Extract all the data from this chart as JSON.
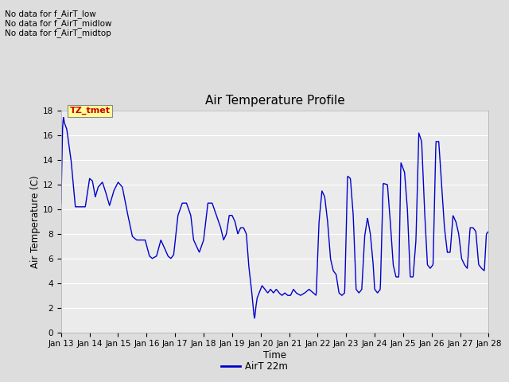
{
  "title": "Air Temperature Profile",
  "xlabel": "Time",
  "ylabel": "Air Temperature (C)",
  "ylim": [
    0,
    18
  ],
  "yticks": [
    0,
    2,
    4,
    6,
    8,
    10,
    12,
    14,
    16,
    18
  ],
  "x_tick_labels": [
    "Jan 13",
    "Jan 14",
    "Jan 15",
    "Jan 16",
    "Jan 17",
    "Jan 18",
    "Jan 19",
    "Jan 20",
    "Jan 21",
    "Jan 22",
    "Jan 23",
    "Jan 24",
    "Jan 25",
    "Jan 26",
    "Jan 27",
    "Jan 28"
  ],
  "line_color": "#0000cc",
  "line_width": 1.0,
  "fig_bg_color": "#dddddd",
  "plot_bg_color": "#ebebeb",
  "legend_label": "AirT 22m",
  "annotations": [
    "No data for f_AirT_low",
    "No data for f_AirT_midlow",
    "No data for f_AirT_midtop"
  ],
  "annotation_box_text": "TZ_tmet",
  "annotation_box_color": "#cc0000",
  "annotation_box_bg": "#ffff99",
  "control_points": [
    [
      0.0,
      10.5
    ],
    [
      0.05,
      16.5
    ],
    [
      0.08,
      17.5
    ],
    [
      0.12,
      17.0
    ],
    [
      0.2,
      16.5
    ],
    [
      0.35,
      14.0
    ],
    [
      0.5,
      10.2
    ],
    [
      0.7,
      10.2
    ],
    [
      0.85,
      10.2
    ],
    [
      1.0,
      12.5
    ],
    [
      1.1,
      12.3
    ],
    [
      1.2,
      11.0
    ],
    [
      1.3,
      11.8
    ],
    [
      1.45,
      12.2
    ],
    [
      1.55,
      11.5
    ],
    [
      1.7,
      10.3
    ],
    [
      1.85,
      11.5
    ],
    [
      2.0,
      12.2
    ],
    [
      2.15,
      11.8
    ],
    [
      2.3,
      10.0
    ],
    [
      2.5,
      7.8
    ],
    [
      2.65,
      7.5
    ],
    [
      2.8,
      7.5
    ],
    [
      2.95,
      7.5
    ],
    [
      3.1,
      6.2
    ],
    [
      3.2,
      6.0
    ],
    [
      3.35,
      6.2
    ],
    [
      3.5,
      7.5
    ],
    [
      3.6,
      7.0
    ],
    [
      3.75,
      6.2
    ],
    [
      3.85,
      6.0
    ],
    [
      3.95,
      6.3
    ],
    [
      4.1,
      9.5
    ],
    [
      4.25,
      10.5
    ],
    [
      4.4,
      10.5
    ],
    [
      4.55,
      9.5
    ],
    [
      4.65,
      7.5
    ],
    [
      4.75,
      7.0
    ],
    [
      4.85,
      6.5
    ],
    [
      5.0,
      7.5
    ],
    [
      5.15,
      10.5
    ],
    [
      5.3,
      10.5
    ],
    [
      5.45,
      9.5
    ],
    [
      5.6,
      8.5
    ],
    [
      5.7,
      7.5
    ],
    [
      5.8,
      8.0
    ],
    [
      5.9,
      9.5
    ],
    [
      6.0,
      9.5
    ],
    [
      6.1,
      9.0
    ],
    [
      6.2,
      8.0
    ],
    [
      6.3,
      8.5
    ],
    [
      6.4,
      8.5
    ],
    [
      6.5,
      8.0
    ],
    [
      6.58,
      5.5
    ],
    [
      6.63,
      4.5
    ],
    [
      6.68,
      3.5
    ],
    [
      6.72,
      2.5
    ],
    [
      6.76,
      1.5
    ],
    [
      6.79,
      1.1
    ],
    [
      6.83,
      2.0
    ],
    [
      6.88,
      2.8
    ],
    [
      6.95,
      3.2
    ],
    [
      7.05,
      3.8
    ],
    [
      7.15,
      3.5
    ],
    [
      7.25,
      3.2
    ],
    [
      7.35,
      3.5
    ],
    [
      7.45,
      3.2
    ],
    [
      7.55,
      3.5
    ],
    [
      7.65,
      3.2
    ],
    [
      7.75,
      3.0
    ],
    [
      7.85,
      3.2
    ],
    [
      7.95,
      3.0
    ],
    [
      8.05,
      3.0
    ],
    [
      8.15,
      3.5
    ],
    [
      8.25,
      3.2
    ],
    [
      8.4,
      3.0
    ],
    [
      8.55,
      3.2
    ],
    [
      8.7,
      3.5
    ],
    [
      8.85,
      3.2
    ],
    [
      8.95,
      3.0
    ],
    [
      9.05,
      9.0
    ],
    [
      9.15,
      11.5
    ],
    [
      9.25,
      11.0
    ],
    [
      9.35,
      9.0
    ],
    [
      9.45,
      6.0
    ],
    [
      9.55,
      5.0
    ],
    [
      9.65,
      4.7
    ],
    [
      9.75,
      3.2
    ],
    [
      9.85,
      3.0
    ],
    [
      9.95,
      3.2
    ],
    [
      10.05,
      12.7
    ],
    [
      10.15,
      12.5
    ],
    [
      10.25,
      9.5
    ],
    [
      10.35,
      3.5
    ],
    [
      10.45,
      3.2
    ],
    [
      10.55,
      3.5
    ],
    [
      10.65,
      7.8
    ],
    [
      10.75,
      9.3
    ],
    [
      10.85,
      8.0
    ],
    [
      10.95,
      5.5
    ],
    [
      11.0,
      3.5
    ],
    [
      11.1,
      3.2
    ],
    [
      11.2,
      3.5
    ],
    [
      11.3,
      12.1
    ],
    [
      11.45,
      12.0
    ],
    [
      11.55,
      9.0
    ],
    [
      11.65,
      5.5
    ],
    [
      11.75,
      4.5
    ],
    [
      11.85,
      4.5
    ],
    [
      11.92,
      13.8
    ],
    [
      12.05,
      13.0
    ],
    [
      12.15,
      10.0
    ],
    [
      12.25,
      4.5
    ],
    [
      12.35,
      4.5
    ],
    [
      12.45,
      7.5
    ],
    [
      12.55,
      16.2
    ],
    [
      12.65,
      15.5
    ],
    [
      12.75,
      10.0
    ],
    [
      12.85,
      5.5
    ],
    [
      12.95,
      5.2
    ],
    [
      13.05,
      5.5
    ],
    [
      13.15,
      15.5
    ],
    [
      13.25,
      15.5
    ],
    [
      13.35,
      12.0
    ],
    [
      13.45,
      8.5
    ],
    [
      13.55,
      6.5
    ],
    [
      13.65,
      6.5
    ],
    [
      13.75,
      9.5
    ],
    [
      13.85,
      9.0
    ],
    [
      13.95,
      8.0
    ],
    [
      14.05,
      6.0
    ],
    [
      14.15,
      5.5
    ],
    [
      14.25,
      5.2
    ],
    [
      14.35,
      8.5
    ],
    [
      14.45,
      8.5
    ],
    [
      14.55,
      8.2
    ],
    [
      14.65,
      5.5
    ],
    [
      14.75,
      5.2
    ],
    [
      14.85,
      5.0
    ],
    [
      14.92,
      8.0
    ],
    [
      15.0,
      8.2
    ]
  ]
}
